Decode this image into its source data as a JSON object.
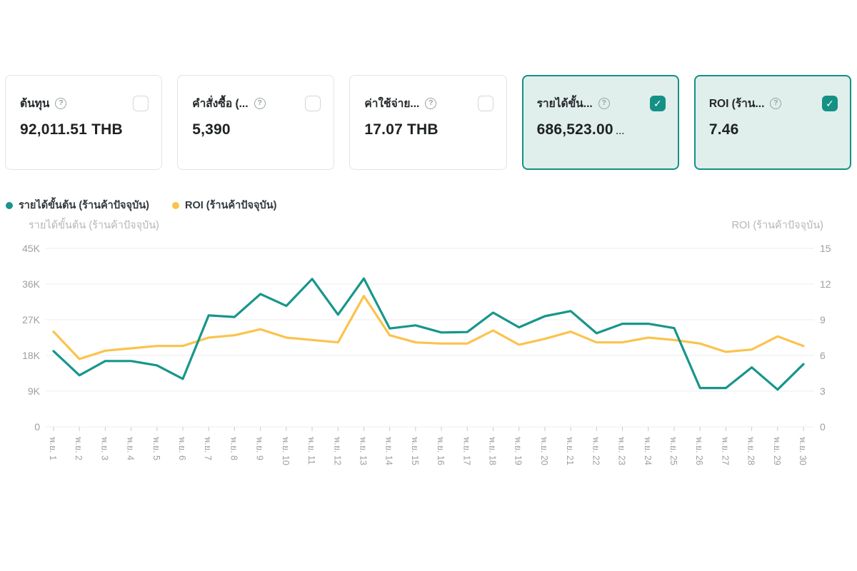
{
  "help_glyph": "?",
  "check_glyph": "✓",
  "cards": [
    {
      "title": "ต้นทุน",
      "value": "92,011.51 THB",
      "suffix": "",
      "checked": false
    },
    {
      "title": "คำสั่งซื้อ (...",
      "value": "5,390",
      "suffix": "",
      "checked": false
    },
    {
      "title": "ค่าใช้จ่าย...",
      "value": "17.07 THB",
      "suffix": "",
      "checked": false
    },
    {
      "title": "รายได้ขั้น...",
      "value": "686,523.00",
      "suffix": "…",
      "checked": true
    },
    {
      "title": "ROI (ร้าน...",
      "value": "7.46",
      "suffix": "",
      "checked": true
    }
  ],
  "legend": [
    {
      "label": "รายได้ขั้นต้น (ร้านค้าปัจจุบัน)",
      "color": "#17968b"
    },
    {
      "label": "ROI (ร้านค้าปัจจุบัน)",
      "color": "#fbc34d"
    }
  ],
  "axis_titles": {
    "left": "รายได้ขั้นต้น (ร้านค้าปัจจุบัน)",
    "right": "ROI (ร้านค้าปัจจุบัน)"
  },
  "colors": {
    "teal": "#17968b",
    "yellow": "#fbc34d",
    "checkbox_teal": "#149185",
    "selected_card_bg": "#e0eeec",
    "grid": "#ececec",
    "tick_text": "#9ba0a2",
    "axis_title_text": "#b3b7b9",
    "tick_mark": "#c9cccd"
  },
  "chart_data": {
    "type": "line",
    "categories": [
      "พ.ย. 1",
      "พ.ย. 2",
      "พ.ย. 3",
      "พ.ย. 4",
      "พ.ย. 5",
      "พ.ย. 6",
      "พ.ย. 7",
      "พ.ย. 8",
      "พ.ย. 9",
      "พ.ย. 10",
      "พ.ย. 11",
      "พ.ย. 12",
      "พ.ย. 13",
      "พ.ย. 14",
      "พ.ย. 15",
      "พ.ย. 16",
      "พ.ย. 17",
      "พ.ย. 18",
      "พ.ย. 19",
      "พ.ย. 20",
      "พ.ย. 21",
      "พ.ย. 22",
      "พ.ย. 23",
      "พ.ย. 24",
      "พ.ย. 25",
      "พ.ย. 26",
      "พ.ย. 27",
      "พ.ย. 28",
      "พ.ย. 29",
      "พ.ย. 30"
    ],
    "series": [
      {
        "name": "รายได้ขั้นต้น (ร้านค้าปัจจุบัน)",
        "axis": "left",
        "color": "#17968b",
        "values": [
          19100,
          13000,
          16600,
          16600,
          15500,
          12100,
          28100,
          27700,
          33500,
          30500,
          37300,
          28300,
          37400,
          24800,
          25600,
          23800,
          23900,
          28800,
          25100,
          27900,
          29200,
          23600,
          26000,
          26000,
          24900,
          9800,
          9800,
          15000,
          9400,
          15800
        ]
      },
      {
        "name": "ROI (ร้านค้าปัจจุบัน)",
        "axis": "right",
        "color": "#fbc34d",
        "values": [
          8.0,
          5.7,
          6.4,
          6.6,
          6.8,
          6.8,
          7.5,
          7.7,
          8.2,
          7.5,
          7.3,
          7.1,
          11.0,
          7.7,
          7.1,
          7.0,
          7.0,
          8.1,
          6.9,
          7.4,
          8.0,
          7.1,
          7.1,
          7.5,
          7.3,
          7.0,
          6.3,
          6.5,
          7.6,
          6.8
        ]
      }
    ],
    "left_axis": {
      "ticks": [
        "45K",
        "36K",
        "27K",
        "18K",
        "9K",
        "0"
      ],
      "max": 45000,
      "min": 0
    },
    "right_axis": {
      "ticks": [
        "15",
        "12",
        "9",
        "6",
        "3",
        "0"
      ],
      "max": 15,
      "min": 0
    },
    "grid": true,
    "legend_position": "top-left",
    "x_label_rotation_deg": 90
  }
}
